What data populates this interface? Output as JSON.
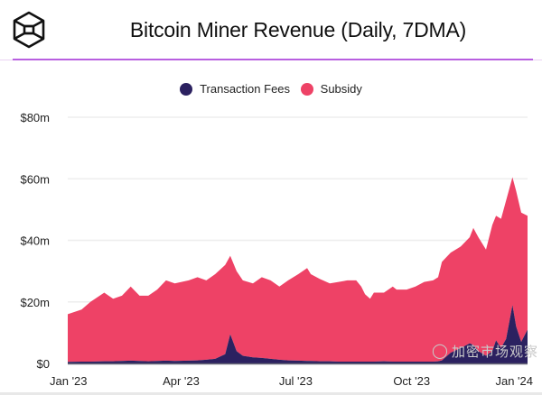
{
  "header": {
    "title": "Bitcoin Miner Revenue (Daily, 7DMA)",
    "logo_icon": "cube-logo-icon"
  },
  "watermark": "加密市场观察",
  "colors": {
    "transaction_fees": "#2b2160",
    "subsidy": "#ee4266",
    "accent_rule": "#b85fe0",
    "grid": "#eeeeee"
  },
  "chart_data": {
    "type": "area",
    "stacked": true,
    "title": "Bitcoin Miner Revenue (Daily, 7DMA)",
    "legend_position": "top-center",
    "grid": true,
    "ylim": [
      0,
      80
    ],
    "yticks": [
      0,
      20,
      40,
      60,
      80
    ],
    "ytick_labels": [
      "$0",
      "$20m",
      "$40m",
      "$60m",
      "$80m"
    ],
    "xlim": [
      "2023-01-01",
      "2024-01-01"
    ],
    "xticks": [
      "2023-01-01",
      "2023-04-01",
      "2023-07-01",
      "2023-10-01",
      "2024-01-01"
    ],
    "xtick_labels": [
      "Jan '23",
      "Apr '23",
      "Jul '23",
      "Oct '23",
      "Jan '24"
    ],
    "x": [
      "2023-01-01",
      "2023-01-12",
      "2023-01-19",
      "2023-01-30",
      "2023-02-06",
      "2023-02-13",
      "2023-02-20",
      "2023-02-27",
      "2023-03-06",
      "2023-03-13",
      "2023-03-20",
      "2023-03-27",
      "2023-04-07",
      "2023-04-14",
      "2023-04-21",
      "2023-04-28",
      "2023-05-06",
      "2023-05-10",
      "2023-05-15",
      "2023-05-20",
      "2023-05-28",
      "2023-06-04",
      "2023-06-11",
      "2023-06-18",
      "2023-06-25",
      "2023-07-03",
      "2023-07-10",
      "2023-07-13",
      "2023-07-20",
      "2023-07-28",
      "2023-08-04",
      "2023-08-11",
      "2023-08-18",
      "2023-08-22",
      "2023-08-25",
      "2023-08-29",
      "2023-09-01",
      "2023-09-09",
      "2023-09-16",
      "2023-09-19",
      "2023-09-27",
      "2023-10-04",
      "2023-10-11",
      "2023-10-18",
      "2023-10-22",
      "2023-10-25",
      "2023-11-01",
      "2023-11-09",
      "2023-11-16",
      "2023-11-19",
      "2023-11-23",
      "2023-11-29",
      "2023-12-04",
      "2023-12-07",
      "2023-12-11",
      "2023-12-15",
      "2023-12-20",
      "2023-12-23",
      "2023-12-27",
      "2024-01-01"
    ],
    "series": [
      {
        "name": "Transaction Fees",
        "values": [
          0.5,
          0.6,
          0.6,
          0.7,
          0.7,
          0.8,
          0.9,
          0.8,
          0.7,
          0.8,
          0.9,
          0.8,
          0.9,
          1.0,
          1.2,
          1.5,
          3,
          9.5,
          4,
          2.5,
          2,
          1.8,
          1.5,
          1.2,
          1.0,
          0.9,
          0.8,
          0.8,
          0.7,
          0.7,
          0.6,
          0.6,
          0.6,
          0.6,
          0.6,
          0.6,
          0.6,
          0.7,
          0.6,
          0.6,
          0.6,
          0.6,
          0.6,
          0.6,
          0.7,
          1.0,
          3.5,
          5,
          6.5,
          6,
          4,
          2.5,
          4,
          7.5,
          5,
          8,
          19,
          12,
          7,
          11
        ]
      },
      {
        "name": "Subsidy",
        "values": [
          15.5,
          16.9,
          19.4,
          22.3,
          20.3,
          21.2,
          24.1,
          21.2,
          21.3,
          23.2,
          26.1,
          25.2,
          26.1,
          27,
          25.8,
          27.5,
          29,
          25.5,
          26,
          24.5,
          24,
          26.2,
          25.5,
          23.8,
          26,
          28.1,
          30.2,
          28.2,
          26.8,
          25.3,
          25.9,
          26.4,
          26.4,
          24.4,
          21.9,
          20.4,
          22.4,
          22.3,
          24.4,
          23.4,
          23.4,
          24.4,
          25.9,
          26.4,
          27.3,
          32,
          32.5,
          33,
          34.5,
          38,
          37,
          34.5,
          41,
          40.5,
          42,
          45,
          41.5,
          44,
          42,
          37
        ]
      }
    ]
  }
}
